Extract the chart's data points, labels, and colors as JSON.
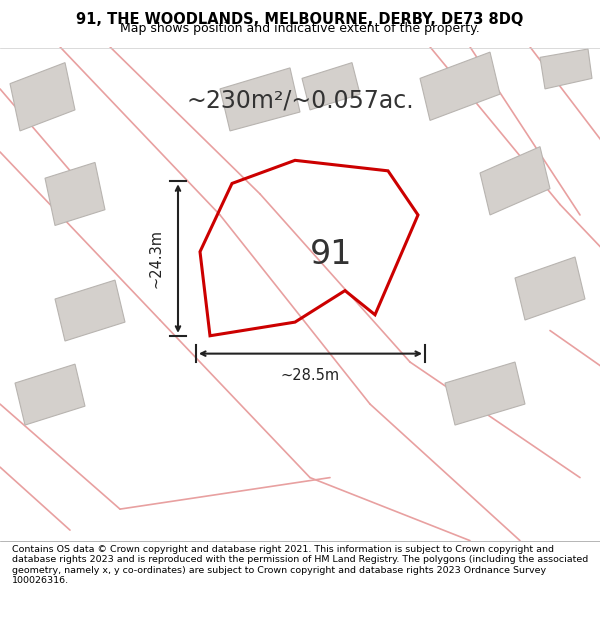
{
  "title_line1": "91, THE WOODLANDS, MELBOURNE, DERBY, DE73 8DQ",
  "title_line2": "Map shows position and indicative extent of the property.",
  "area_label": "~230m²/~0.057ac.",
  "plot_number": "91",
  "dim_width": "~28.5m",
  "dim_height": "~24.3m",
  "footer_text": "Contains OS data © Crown copyright and database right 2021. This information is subject to Crown copyright and database rights 2023 and is reproduced with the permission of HM Land Registry. The polygons (including the associated geometry, namely x, y co-ordinates) are subject to Crown copyright and database rights 2023 Ordnance Survey 100026316.",
  "bg_color": "#ede9e3",
  "plot_edge_color": "#cc0000",
  "road_color": "#e8a0a0",
  "building_color": "#d4d0cc",
  "building_edge": "#b8b4b0",
  "footer_bg": "#ffffff",
  "title_bg": "#ffffff"
}
